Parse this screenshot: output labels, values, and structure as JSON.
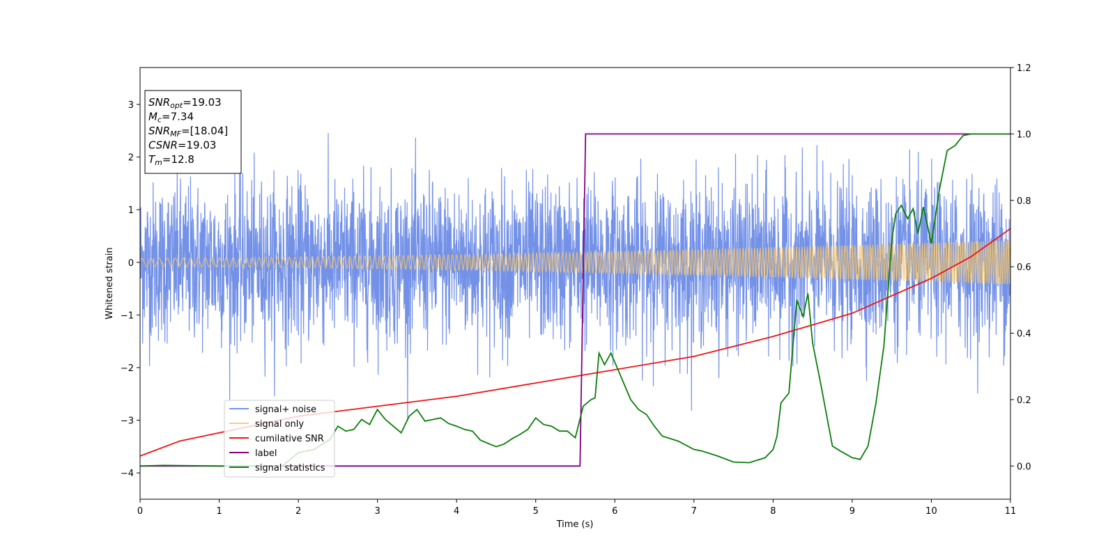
{
  "chart_data": {
    "type": "line",
    "xlabel": "Time (s)",
    "ylabel": "Whitened strain",
    "xlim": [
      0,
      11
    ],
    "ylim_left": [
      -4.5,
      3.7
    ],
    "ylim_right": [
      -0.1,
      1.2
    ],
    "x_ticks": [
      "0",
      "1",
      "2",
      "3",
      "4",
      "5",
      "6",
      "7",
      "8",
      "9",
      "10",
      "11"
    ],
    "y_left_ticks": [
      "3",
      "2",
      "1",
      "0",
      "−1",
      "−2",
      "−3",
      "−4"
    ],
    "y_right_ticks": [
      "1.2",
      "1.0",
      "0.8",
      "0.6",
      "0.4",
      "0.2",
      "0.0"
    ],
    "legend_position": "lower-left",
    "annotation": [
      {
        "base": "SNR",
        "sub": "opt",
        "value": "=19.03"
      },
      {
        "base": "M",
        "sub": "c",
        "value": "=7.34"
      },
      {
        "base": "SNR",
        "sub": "MF",
        "value": "=[18.04]"
      },
      {
        "base": "CSNR",
        "sub": "",
        "value": "=19.03"
      },
      {
        "base": "T",
        "sub": "m",
        "value": "=12.8"
      }
    ],
    "series": [
      {
        "name": "signal+ noise",
        "color": "#6b8be6",
        "axis": "left",
        "kind": "noise",
        "envelope_sigma": 0.75,
        "peak_range": [
          -4.15,
          3.35
        ]
      },
      {
        "name": "signal only",
        "color": "#f2c46d",
        "axis": "left",
        "kind": "chirp",
        "amplitude_start": 0.08,
        "amplitude_end": 0.42
      },
      {
        "name": "cumilative SNR",
        "color": "#ee1111",
        "axis": "right",
        "x": [
          0,
          0.5,
          1,
          2,
          3,
          4,
          5,
          6,
          7,
          8,
          9,
          10,
          10.5,
          11
        ],
        "y": [
          0.03,
          0.075,
          0.1,
          0.15,
          0.18,
          0.21,
          0.25,
          0.29,
          0.33,
          0.39,
          0.46,
          0.565,
          0.63,
          0.715
        ]
      },
      {
        "name": "label",
        "color": "#800080",
        "axis": "right",
        "x": [
          0,
          5.56,
          5.63,
          11
        ],
        "y": [
          0.0,
          0.0,
          1.0,
          1.0
        ]
      },
      {
        "name": "signal statistics",
        "color": "#0a7d0a",
        "axis": "right",
        "x": [
          0,
          0.3,
          1,
          1.8,
          2.0,
          2.2,
          2.4,
          2.5,
          2.6,
          2.7,
          2.8,
          2.9,
          3.0,
          3.1,
          3.2,
          3.3,
          3.4,
          3.5,
          3.6,
          3.7,
          3.8,
          3.9,
          4.0,
          4.1,
          4.2,
          4.3,
          4.4,
          4.5,
          4.6,
          4.7,
          4.8,
          4.9,
          5.0,
          5.1,
          5.2,
          5.3,
          5.4,
          5.5,
          5.6,
          5.7,
          5.75,
          5.8,
          5.87,
          5.95,
          6.05,
          6.2,
          6.3,
          6.4,
          6.5,
          6.6,
          6.8,
          7.0,
          7.1,
          7.3,
          7.5,
          7.7,
          7.9,
          8.0,
          8.05,
          8.1,
          8.2,
          8.3,
          8.38,
          8.44,
          8.5,
          8.6,
          8.75,
          8.85,
          9.0,
          9.1,
          9.2,
          9.3,
          9.4,
          9.45,
          9.5,
          9.55,
          9.62,
          9.7,
          9.77,
          9.83,
          9.9,
          10.0,
          10.1,
          10.2,
          10.3,
          10.4,
          10.5,
          11
        ],
        "y": [
          0.0,
          0.002,
          0.0,
          0.0,
          0.04,
          0.05,
          0.08,
          0.12,
          0.105,
          0.11,
          0.14,
          0.125,
          0.17,
          0.14,
          0.12,
          0.1,
          0.15,
          0.17,
          0.135,
          0.14,
          0.145,
          0.128,
          0.12,
          0.11,
          0.105,
          0.078,
          0.068,
          0.058,
          0.066,
          0.082,
          0.095,
          0.11,
          0.145,
          0.125,
          0.12,
          0.105,
          0.105,
          0.085,
          0.18,
          0.2,
          0.205,
          0.34,
          0.305,
          0.34,
          0.285,
          0.2,
          0.17,
          0.155,
          0.12,
          0.09,
          0.075,
          0.05,
          0.045,
          0.03,
          0.012,
          0.01,
          0.025,
          0.05,
          0.09,
          0.19,
          0.22,
          0.5,
          0.45,
          0.52,
          0.37,
          0.25,
          0.06,
          0.045,
          0.025,
          0.02,
          0.06,
          0.19,
          0.36,
          0.52,
          0.68,
          0.76,
          0.785,
          0.745,
          0.775,
          0.7,
          0.78,
          0.67,
          0.83,
          0.95,
          0.965,
          0.995,
          1.0,
          1.0
        ]
      }
    ]
  }
}
